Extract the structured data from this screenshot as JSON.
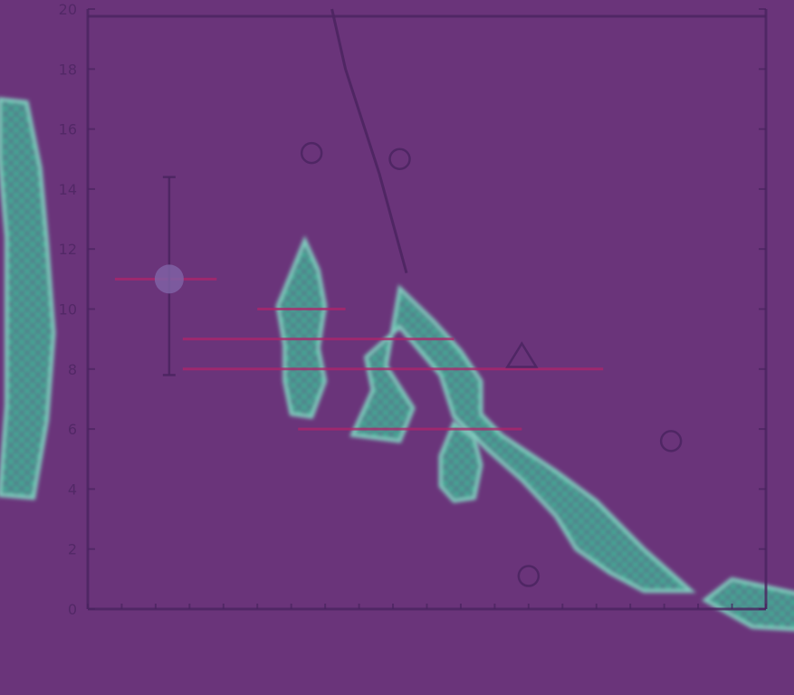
{
  "chart_data": {
    "type": "scatter",
    "title": "",
    "xlabel": "",
    "ylabel": "",
    "ylim": [
      0,
      20
    ],
    "xlim": [
      0,
      10
    ],
    "y_ticks": [
      "0",
      "2",
      "4",
      "6",
      "8",
      "10",
      "12",
      "14",
      "16",
      "18",
      "20"
    ],
    "grid": false,
    "colors": {
      "background": "#6a347a",
      "axis": "#4a2460",
      "reference": "#b0246a",
      "density_fill": "#3fb79a",
      "density_highlight": "#86e0c8"
    },
    "reference_lines": [
      {
        "y": 10,
        "x_start": 2.5,
        "x_end": 3.8
      },
      {
        "y": 9,
        "x_start": 1.4,
        "x_end": 5.4
      },
      {
        "y": 8,
        "x_start": 1.4,
        "x_end": 7.6
      },
      {
        "y": 6,
        "x_start": 3.1,
        "x_end": 6.4
      },
      {
        "y": 11,
        "x_start": 0.4,
        "x_end": 1.9
      }
    ],
    "curve": [
      {
        "x": 3.6,
        "y": 20
      },
      {
        "x": 3.8,
        "y": 18
      },
      {
        "x": 4.3,
        "y": 14.5
      },
      {
        "x": 4.7,
        "y": 11.2
      }
    ],
    "point_with_errorbar": {
      "x": 1.2,
      "y": 11,
      "y_low": 7.8,
      "y_high": 14.4
    },
    "markers": [
      {
        "x": 3.3,
        "y": 15.2,
        "shape": "circle"
      },
      {
        "x": 4.6,
        "y": 15,
        "shape": "circle"
      },
      {
        "x": 6.4,
        "y": 8.4,
        "shape": "triangle"
      },
      {
        "x": 8.6,
        "y": 5.6,
        "shape": "circle"
      },
      {
        "x": 6.5,
        "y": 1.1,
        "shape": "circle"
      }
    ],
    "density_regions": [
      {
        "points": [
          [
            3.2,
            12.3
          ],
          [
            3.4,
            11.3
          ],
          [
            3.5,
            10.1
          ],
          [
            3.4,
            8.7
          ],
          [
            3.5,
            7.6
          ],
          [
            3.3,
            6.4
          ],
          [
            3.0,
            6.5
          ],
          [
            2.9,
            7.6
          ],
          [
            2.9,
            8.8
          ],
          [
            2.8,
            10.1
          ],
          [
            3.0,
            11.2
          ]
        ]
      },
      {
        "points": [
          [
            4.6,
            10.7
          ],
          [
            5.1,
            9.6
          ],
          [
            5.5,
            8.6
          ],
          [
            5.8,
            7.6
          ],
          [
            5.8,
            6.5
          ],
          [
            6.1,
            5.8
          ],
          [
            6.9,
            4.6
          ],
          [
            7.5,
            3.6
          ],
          [
            8.2,
            2.0
          ],
          [
            8.9,
            0.6
          ],
          [
            8.2,
            0.6
          ],
          [
            7.7,
            1.2
          ],
          [
            7.2,
            2.0
          ],
          [
            6.9,
            3.1
          ],
          [
            6.4,
            4.3
          ],
          [
            5.9,
            5.3
          ],
          [
            5.4,
            6.4
          ],
          [
            5.2,
            7.8
          ],
          [
            4.9,
            8.6
          ],
          [
            4.6,
            9.4
          ],
          [
            4.1,
            8.4
          ],
          [
            4.2,
            7.3
          ],
          [
            3.9,
            5.8
          ],
          [
            4.6,
            5.6
          ],
          [
            4.8,
            6.7
          ],
          [
            4.4,
            8.1
          ]
        ]
      },
      {
        "points": [
          [
            -0.9,
            16.9
          ],
          [
            -0.7,
            14.7
          ],
          [
            -0.6,
            12.2
          ],
          [
            -0.5,
            9.2
          ],
          [
            -0.6,
            6.3
          ],
          [
            -0.8,
            3.7
          ],
          [
            -1.3,
            3.8
          ],
          [
            -1.2,
            6.8
          ],
          [
            -1.2,
            9.6
          ],
          [
            -1.2,
            12.4
          ],
          [
            -1.3,
            15.0
          ],
          [
            -1.3,
            17.0
          ]
        ]
      },
      {
        "points": [
          [
            5.2,
            5.1
          ],
          [
            5.2,
            4.1
          ],
          [
            5.4,
            3.6
          ],
          [
            5.7,
            3.7
          ],
          [
            5.8,
            4.8
          ],
          [
            5.7,
            5.7
          ],
          [
            5.4,
            6.2
          ]
        ]
      },
      {
        "points": [
          [
            9.5,
            1.0
          ],
          [
            10.5,
            0.5
          ],
          [
            10.6,
            -0.7
          ],
          [
            9.8,
            -0.6
          ],
          [
            9.1,
            0.3
          ]
        ]
      }
    ]
  }
}
